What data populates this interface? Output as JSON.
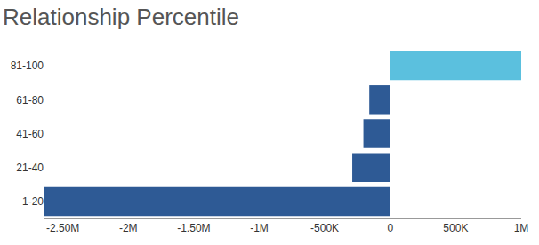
{
  "chart_data": {
    "type": "bar",
    "title": "Relationship Percentile",
    "orientation": "horizontal",
    "categories": [
      "1-20",
      "21-40",
      "41-60",
      "61-80",
      "81-100"
    ],
    "values": [
      -2640000,
      -290000,
      -205000,
      -160000,
      1000000
    ],
    "colors": [
      "#2e5a95",
      "#2e5a95",
      "#2e5a95",
      "#2e5a95",
      "#5bc0de"
    ],
    "xlim": [
      -2640000,
      1000000
    ],
    "xticks": [
      {
        "value": -2500000,
        "label": "-2.50M"
      },
      {
        "value": -2000000,
        "label": "-2M"
      },
      {
        "value": -1500000,
        "label": "-1.50M"
      },
      {
        "value": -1000000,
        "label": "-1M"
      },
      {
        "value": -500000,
        "label": "-500K"
      },
      0,
      {
        "value": 500000,
        "label": "500K"
      },
      {
        "value": 1000000,
        "label": "1M"
      }
    ],
    "grid": false
  }
}
